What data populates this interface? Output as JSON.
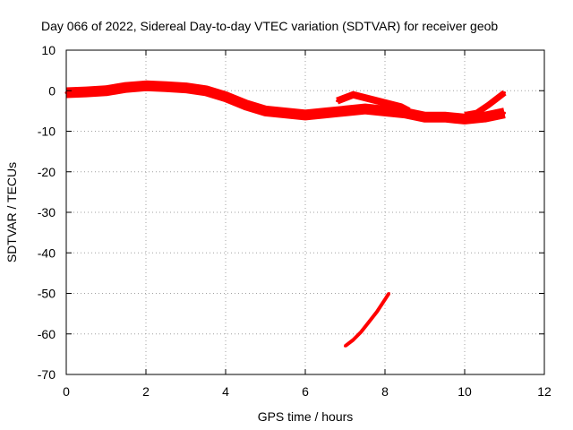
{
  "chart_data": {
    "type": "line",
    "title": "Day 066 of 2022, Sidereal Day-to-day VTEC variation (SDTVAR) for receiver geob",
    "xlabel": "GPS time / hours",
    "ylabel": "SDTVAR / TECUs",
    "xlim": [
      0,
      12
    ],
    "ylim": [
      -70,
      10
    ],
    "xticks": [
      0,
      2,
      4,
      6,
      8,
      10,
      12
    ],
    "yticks": [
      10,
      0,
      -10,
      -20,
      -30,
      -40,
      -50,
      -60,
      -70
    ],
    "grid": true,
    "legend": "none",
    "series_color": "#ff0000",
    "series": [
      {
        "name": "main-band",
        "x": [
          0,
          0.5,
          1.0,
          1.5,
          2.0,
          2.5,
          3.0,
          3.5,
          4.0,
          4.5,
          5.0,
          5.5,
          6.0,
          6.5,
          7.0,
          7.5,
          8.0,
          8.5,
          9.0,
          9.5,
          10.0,
          10.5,
          11.0
        ],
        "y": [
          -0.5,
          -0.3,
          0,
          0.8,
          1.2,
          1.0,
          0.7,
          0,
          -1.5,
          -3.5,
          -5,
          -5.5,
          -6,
          -5.5,
          -5,
          -4.5,
          -5,
          -5.5,
          -6.5,
          -6.5,
          -7,
          -6.5,
          -5.5
        ]
      },
      {
        "name": "upper-track",
        "x": [
          6.8,
          7.2,
          7.6,
          8.0,
          8.4,
          8.6
        ],
        "y": [
          -2.5,
          -1,
          -2,
          -3,
          -4,
          -5
        ]
      },
      {
        "name": "rising-track",
        "x": [
          10.0,
          10.3,
          10.6,
          10.8,
          11.0
        ],
        "y": [
          -6,
          -5.5,
          -3.5,
          -2,
          -0.5
        ]
      },
      {
        "name": "lower-track",
        "x": [
          7.0,
          7.2,
          7.4,
          7.6,
          7.8,
          8.0,
          8.1
        ],
        "y": [
          -63,
          -61.5,
          -59.5,
          -57,
          -54.5,
          -51.5,
          -50
        ]
      }
    ]
  }
}
